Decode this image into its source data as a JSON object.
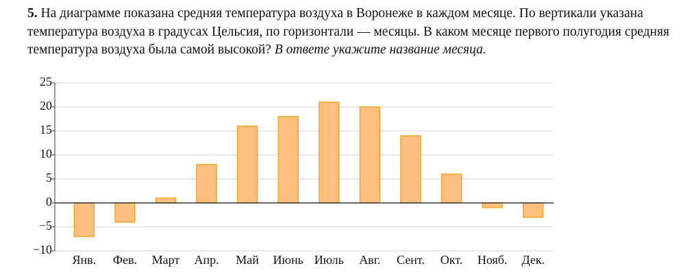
{
  "problem": {
    "number": "5.",
    "text": "На диаграмме показана средняя температура воздуха в Воронеже в каждом месяце. По вертикали указана температура воздуха в градусах Цельсия, по горизонтали — месяцы. В каком месяце первого полугодия средняя температура воздуха была самой высокой?",
    "instruction": "В ответе укажите название месяца."
  },
  "chart_data": {
    "type": "bar",
    "categories": [
      "Янв.",
      "Фев.",
      "Март",
      "Апр.",
      "Май",
      "Июнь",
      "Июль",
      "Авг.",
      "Сент.",
      "Окт.",
      "Нояб.",
      "Дек."
    ],
    "values": [
      -7,
      -4,
      1,
      8,
      16,
      18,
      21,
      20,
      14,
      6,
      -1,
      -3
    ],
    "color": "#ffc07f",
    "edge_color": "#f5a623",
    "ylim": [
      -10,
      25
    ],
    "yticks": [
      {
        "value": -10,
        "label": "−10"
      },
      {
        "value": -5,
        "label": "−5"
      },
      0,
      5,
      10,
      15,
      20,
      25
    ],
    "grid": true
  }
}
